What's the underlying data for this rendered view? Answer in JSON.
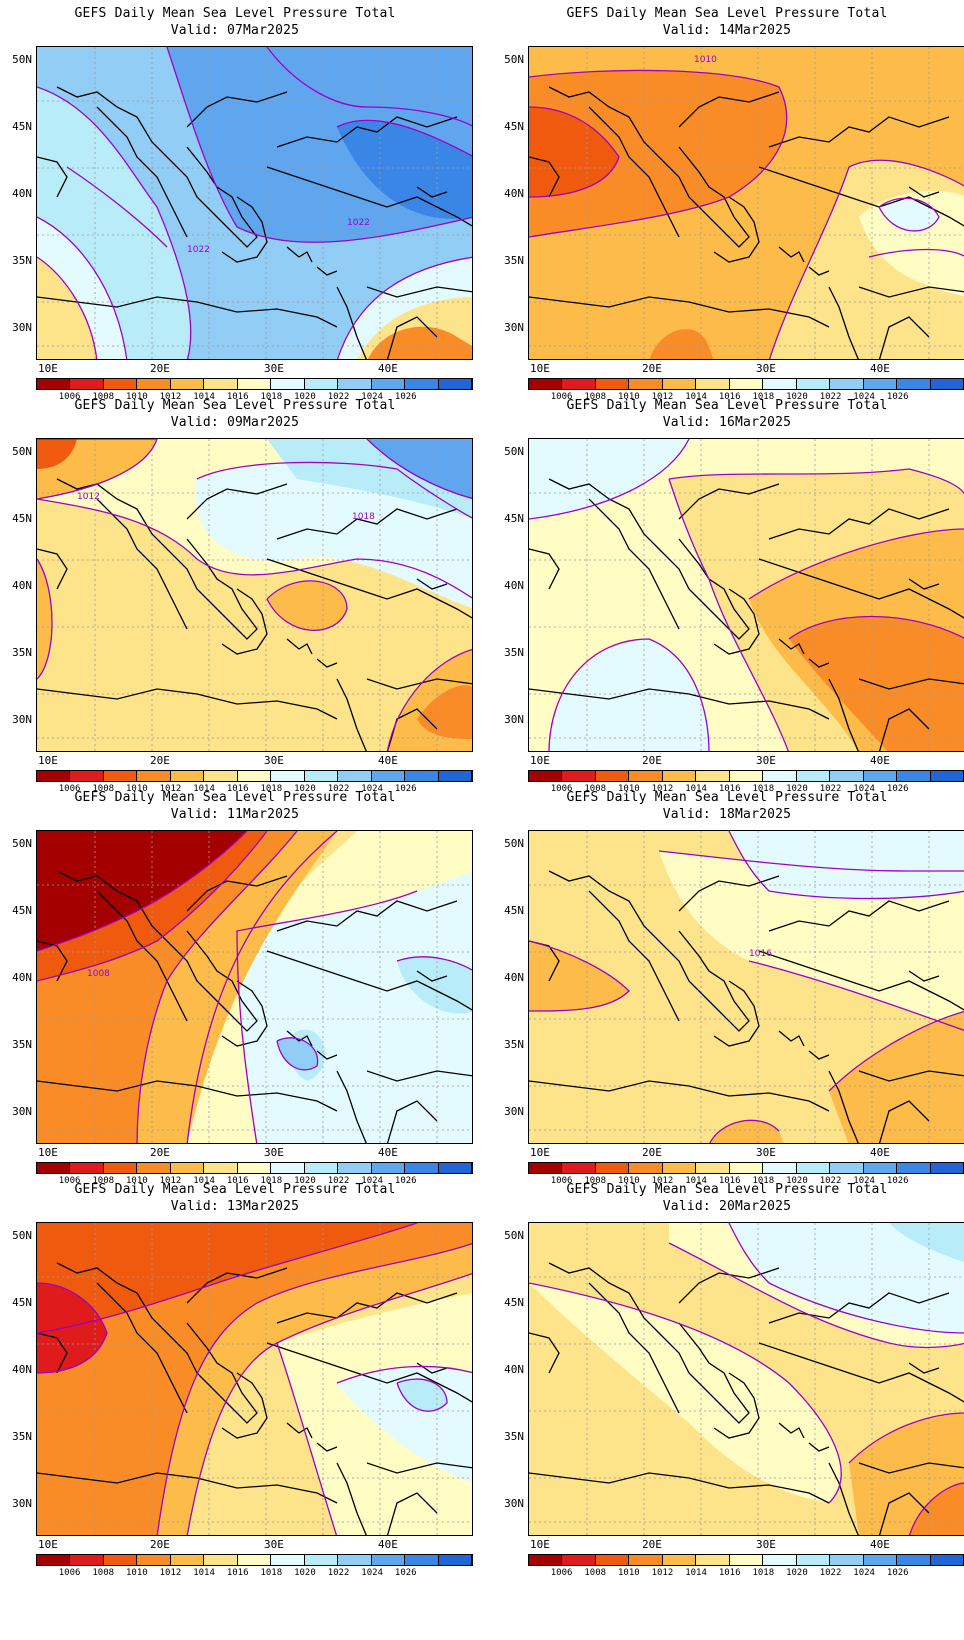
{
  "title_line": "GEFS Daily Mean Sea Level Pressure Total",
  "valid_prefix": "Valid: ",
  "lat_labels": [
    "50N",
    "45N",
    "40N",
    "35N",
    "30N"
  ],
  "lon_labels": [
    "10E",
    "20E",
    "30E",
    "40E"
  ],
  "colorbar": {
    "labels": [
      "1006",
      "1008",
      "1010",
      "1012",
      "1014",
      "1016",
      "1018",
      "1020",
      "1022",
      "1024",
      "1026"
    ],
    "colors": [
      "#a50000",
      "#e01b1b",
      "#f05a0f",
      "#fa8c28",
      "#fdbb4a",
      "#fde38a",
      "#fffcc4",
      "#e3fbff",
      "#b8ecf8",
      "#92cdf5",
      "#5fa6ee",
      "#3a86e6",
      "#2064d6"
    ]
  },
  "panels": [
    {
      "date": "07Mar2025",
      "contour_labels": [
        "1022",
        "1022"
      ]
    },
    {
      "date": "14Mar2025",
      "contour_labels": [
        "1010"
      ]
    },
    {
      "date": "09Mar2025",
      "contour_labels": [
        "1012",
        "1018"
      ]
    },
    {
      "date": "16Mar2025",
      "contour_labels": []
    },
    {
      "date": "11Mar2025",
      "contour_labels": [
        "1008"
      ]
    },
    {
      "date": "18Mar2025",
      "contour_labels": [
        "1016"
      ]
    },
    {
      "date": "13Mar2025",
      "contour_labels": []
    },
    {
      "date": "20Mar2025",
      "contour_labels": []
    }
  ]
}
